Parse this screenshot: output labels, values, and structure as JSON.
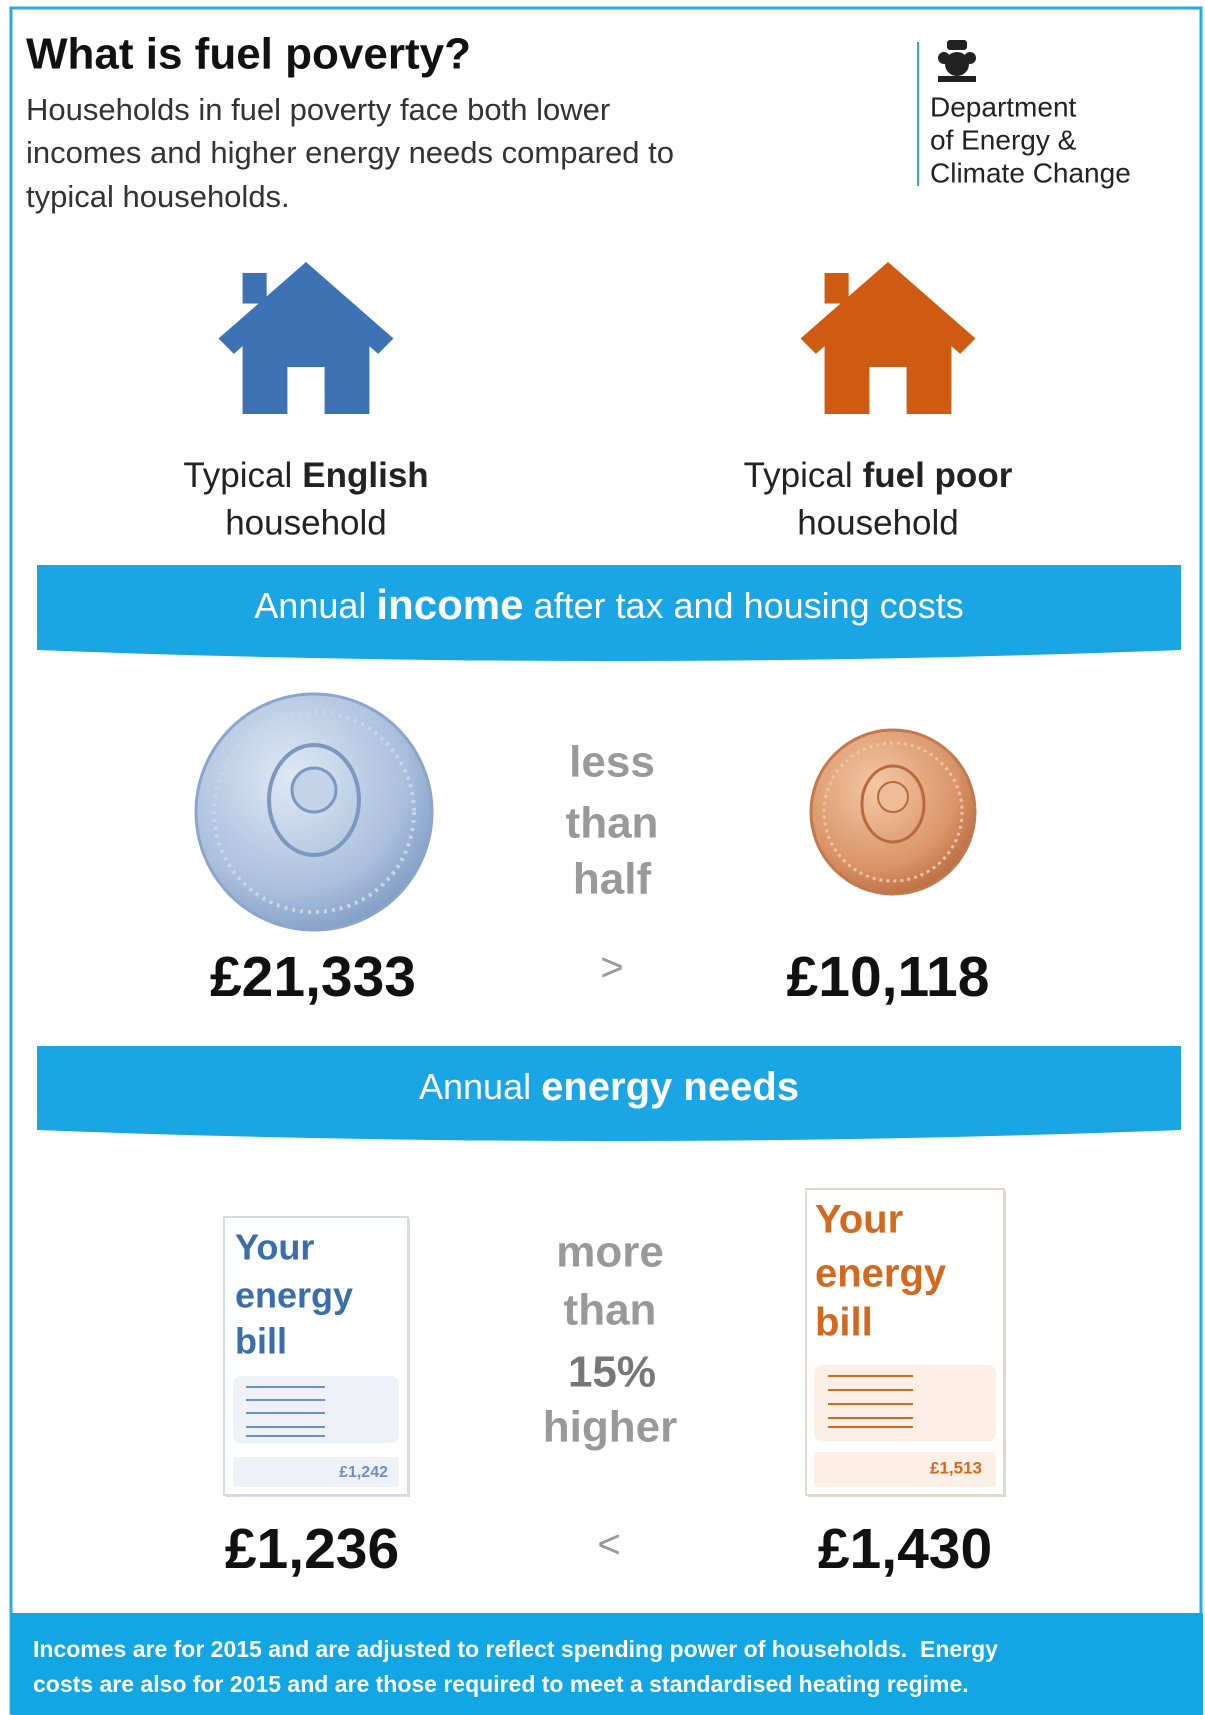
{
  "header": {
    "title": "What is fuel poverty?",
    "subtitle": [
      "Households in fuel poverty face both lower",
      "incomes and higher energy needs compared to",
      "typical households."
    ]
  },
  "logo": {
    "lines": [
      "Department",
      "of Energy &",
      "Climate Change"
    ]
  },
  "households": [
    {
      "label_regular": "Typical",
      "label_bold": "English",
      "label_line2": "household"
    },
    {
      "label_regular": "Typical",
      "label_bold": "fuel poor",
      "label_line2": "household"
    }
  ],
  "income": {
    "banner": {
      "regular": "Annual",
      "bold": "income",
      "rest": "after tax and housing costs"
    },
    "comparison": [
      "less",
      "than",
      "half"
    ],
    "symbol": ">",
    "values": [
      "£21,333",
      "£10,118"
    ]
  },
  "energy": {
    "banner": {
      "regular": "Annual",
      "bold": "energy needs"
    },
    "comparison": [
      "more",
      "than",
      "15%",
      "higher"
    ],
    "symbol": "<",
    "values": [
      "£1,236",
      "£1,430"
    ],
    "bills": [
      {
        "lines": [
          "Your",
          "energy",
          "bill"
        ],
        "amount": "£1,242"
      },
      {
        "lines": [
          "Your",
          "energy",
          "bill"
        ],
        "amount": "£1,513"
      }
    ]
  },
  "footer": [
    "Incomes are for 2015 and are adjusted to reflect spending power of households.  Energy",
    "costs are also for 2015 and are those required to meet a standardised heating regime."
  ]
}
